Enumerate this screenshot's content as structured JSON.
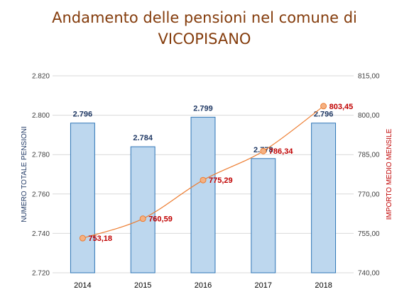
{
  "chart_data": {
    "type": "bar+line",
    "title_lines": [
      "Andamento delle pensioni nel comune di",
      "VICOPISANO"
    ],
    "categories": [
      "2014",
      "2015",
      "2016",
      "2017",
      "2018"
    ],
    "series": [
      {
        "name": "NUMERO TOTALE PENSIONI",
        "type": "bar",
        "axis": "left",
        "values": [
          2796,
          2784,
          2799,
          2778,
          2796
        ],
        "labels": [
          "2.796",
          "2.784",
          "2.799",
          "2.778",
          "2.796"
        ]
      },
      {
        "name": "IMPORTO MEDIO MENSILE",
        "type": "line",
        "axis": "right",
        "values": [
          753.18,
          760.59,
          775.29,
          786.34,
          803.45
        ],
        "labels": [
          "753,18",
          "760,59",
          "775,29",
          "786,34",
          "803,45"
        ]
      }
    ],
    "y_left": {
      "label": "NUMERO TOTALE PENSIONI",
      "range": [
        2720,
        2820
      ],
      "ticks": [
        2720,
        2740,
        2760,
        2780,
        2800,
        2820
      ],
      "tick_labels": [
        "2.720",
        "2.740",
        "2.760",
        "2.780",
        "2.800",
        "2.820"
      ]
    },
    "y_right": {
      "label": "IMPORTO MEDIO MENSILE",
      "range": [
        740,
        815
      ],
      "ticks": [
        740,
        755,
        770,
        785,
        800,
        815
      ],
      "tick_labels": [
        "740,00",
        "755,00",
        "770,00",
        "785,00",
        "800,00",
        "815,00"
      ]
    },
    "grid": true,
    "legend": "none",
    "colors": {
      "title": "#843c0c",
      "bar_fill": "#bdd7ee",
      "bar_stroke": "#2e75b6",
      "bar_label": "#1f3864",
      "line": "#ed7d31",
      "marker_fill": "#f4b183",
      "line_label": "#c00000",
      "grid": "#d9d9d9"
    }
  }
}
